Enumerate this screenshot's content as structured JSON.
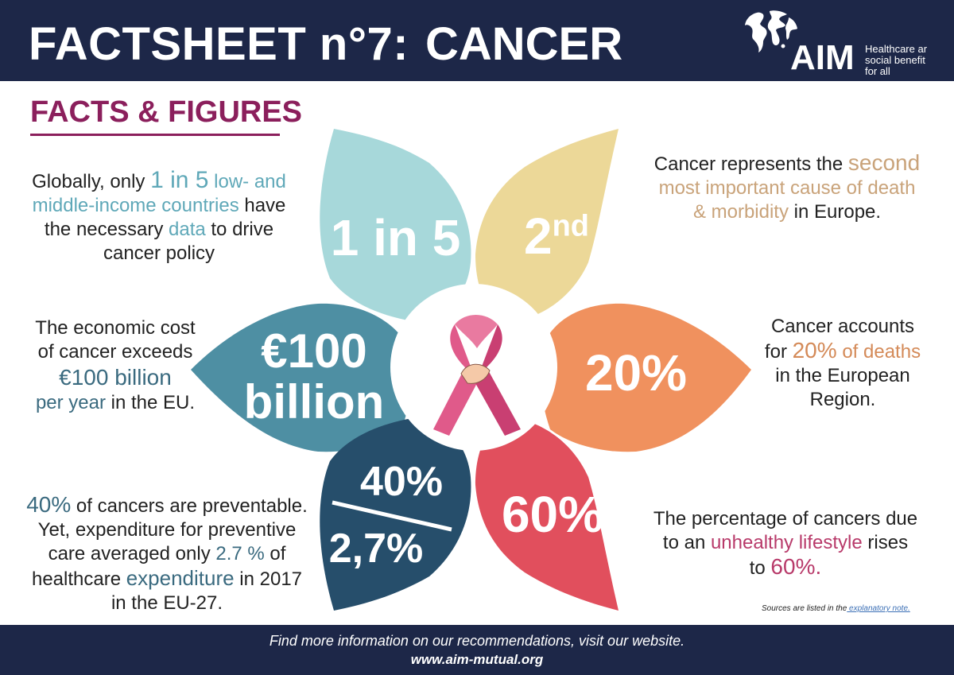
{
  "header": {
    "title_left": "FACTSHEET n°7:",
    "title_right": "CANCER",
    "logo_text": "AIM",
    "logo_tagline": [
      "Healthcare ar",
      "social benefit",
      "for all"
    ]
  },
  "section_title": "FACTS & FIGURES",
  "colors": {
    "navy": "#1d2748",
    "plum": "#8b1f5c",
    "petal_light_teal": "#a7d8da",
    "petal_yellow": "#ecd898",
    "petal_teal": "#4e8fa3",
    "petal_orange": "#f0915e",
    "petal_navy": "#264e6b",
    "petal_red": "#e14f5d",
    "ribbon_pink": "#e05a8a"
  },
  "petals": {
    "top_left": "1 in 5",
    "top_right_main": "2",
    "top_right_sup": "nd",
    "left_line1": "€100",
    "left_line2": "billion",
    "right": "20%",
    "bottom_left_top": "40%",
    "bottom_left_bottom": "2,7%",
    "bottom_right": "60%"
  },
  "facts": {
    "f1": {
      "t1": "Globally, only ",
      "h1": "1 in 5",
      "h2": " low- and",
      "h3": "middle-income countries",
      "t2": " have",
      "t3": "the necessary ",
      "h4": "data",
      "t4": " to drive",
      "t5": "cancer policy"
    },
    "f2": {
      "t1": "Cancer represents the ",
      "h1": "second",
      "h2": "most important cause of death",
      "h3": "& morbidity",
      "t2": " in Europe."
    },
    "f3": {
      "t1": "The economic cost",
      "t2": "of cancer exceeds",
      "h1": "€100 billion",
      "h2": "per year",
      "t3": " in the EU."
    },
    "f4": {
      "t1": "Cancer accounts",
      "t2": "for ",
      "h1": "20%",
      "h2": " of deaths",
      "t3": "in the European",
      "t4": "Region."
    },
    "f5": {
      "h1": "40%",
      "t1": " of cancers are preventable.",
      "t2": "Yet, expenditure for preventive",
      "t3": "care averaged only ",
      "h2": "2.7 %",
      "t4": " of",
      "t5": "healthcare ",
      "h3": "expenditure",
      "t6": " in 2017",
      "t7": "in the EU-27."
    },
    "f6": {
      "t1": "The percentage of cancers due",
      "t2": "to an ",
      "h1": "unhealthy lifestyle",
      "t3": " rises",
      "t4": "to ",
      "h2": "60%."
    }
  },
  "sources": {
    "text": "Sources are listed in the",
    "link": " explanatory note."
  },
  "footer": {
    "line1": "Find more information on our recommendations, visit our website.",
    "line2": "www.aim-mutual.org"
  }
}
